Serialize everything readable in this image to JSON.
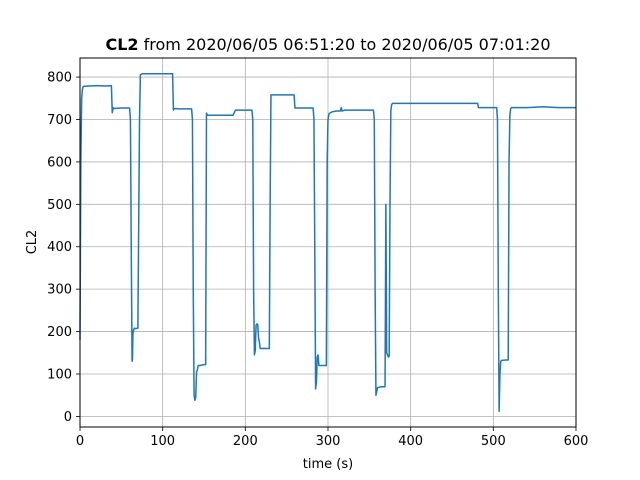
{
  "chart_data": {
    "type": "line",
    "title_bold": "CL2",
    "title_rest": " from 2020/06/05 06:51:20 to 2020/06/05 07:01:20",
    "xlabel": "time (s)",
    "ylabel": "CL2",
    "xlim": [
      0,
      600
    ],
    "ylim": [
      -25,
      845
    ],
    "xticks": [
      0,
      100,
      200,
      300,
      400,
      500,
      600
    ],
    "yticks": [
      0,
      100,
      200,
      300,
      400,
      500,
      600,
      700,
      800
    ],
    "grid": true,
    "color": "#1f77b4",
    "series": [
      {
        "x": [
          0,
          1,
          2,
          3,
          4,
          5,
          10,
          20,
          30,
          38,
          39,
          40,
          41,
          50,
          60,
          61,
          62,
          63,
          63.5,
          64,
          65,
          66,
          67,
          70,
          72,
          73,
          75,
          80,
          90,
          100,
          110,
          112,
          113,
          114,
          120,
          135,
          136,
          137,
          138,
          139,
          140,
          141,
          142,
          143,
          145,
          150,
          152,
          153,
          154,
          160,
          170,
          180,
          185,
          188,
          189,
          190,
          200,
          208,
          209,
          210,
          211,
          212,
          213,
          214,
          215,
          216,
          217,
          218,
          219,
          220,
          225,
          229,
          230,
          231,
          232,
          240,
          250,
          258,
          259,
          260,
          262,
          270,
          280,
          282,
          283,
          284,
          285,
          286,
          287,
          288,
          289,
          290,
          291,
          295,
          298,
          299,
          300,
          301,
          302,
          305,
          310,
          315,
          316,
          317,
          320,
          330,
          340,
          350,
          355,
          356,
          357,
          358,
          360,
          365,
          368,
          369,
          370,
          371,
          373,
          374,
          375,
          376,
          377,
          378,
          380,
          400,
          420,
          450,
          470,
          480,
          481,
          482,
          490,
          500,
          503,
          504,
          505,
          506,
          507,
          508,
          509,
          510,
          515,
          516,
          517,
          518,
          519,
          520,
          521,
          522,
          530,
          540,
          550,
          560,
          570,
          580,
          590,
          600
        ],
        "y": [
          180,
          600,
          750,
          772,
          778,
          778,
          779,
          780,
          779,
          780,
          716,
          728,
          726,
          727,
          727,
          700,
          400,
          130,
          135,
          195,
          205,
          208,
          207,
          208,
          700,
          805,
          808,
          808,
          808,
          808,
          808,
          808,
          722,
          726,
          725,
          725,
          700,
          300,
          50,
          38,
          45,
          105,
          110,
          120,
          120,
          122,
          122,
          715,
          710,
          710,
          710,
          710,
          710,
          722,
          722,
          722,
          722,
          722,
          700,
          300,
          145,
          155,
          215,
          218,
          217,
          185,
          175,
          160,
          160,
          160,
          160,
          160,
          500,
          758,
          758,
          758,
          758,
          758,
          758,
          727,
          727,
          727,
          727,
          727,
          700,
          400,
          65,
          80,
          140,
          145,
          120,
          120,
          120,
          120,
          120,
          600,
          700,
          712,
          715,
          718,
          720,
          720,
          728,
          720,
          722,
          722,
          722,
          722,
          722,
          700,
          300,
          50,
          68,
          70,
          70,
          70,
          500,
          150,
          140,
          142,
          500,
          720,
          735,
          738,
          738,
          738,
          738,
          738,
          738,
          738,
          738,
          728,
          728,
          728,
          728,
          728,
          700,
          300,
          12,
          100,
          130,
          132,
          133,
          133,
          133,
          133,
          600,
          710,
          726,
          728,
          728,
          728,
          729,
          730,
          729,
          728,
          728,
          728
        ]
      }
    ]
  }
}
